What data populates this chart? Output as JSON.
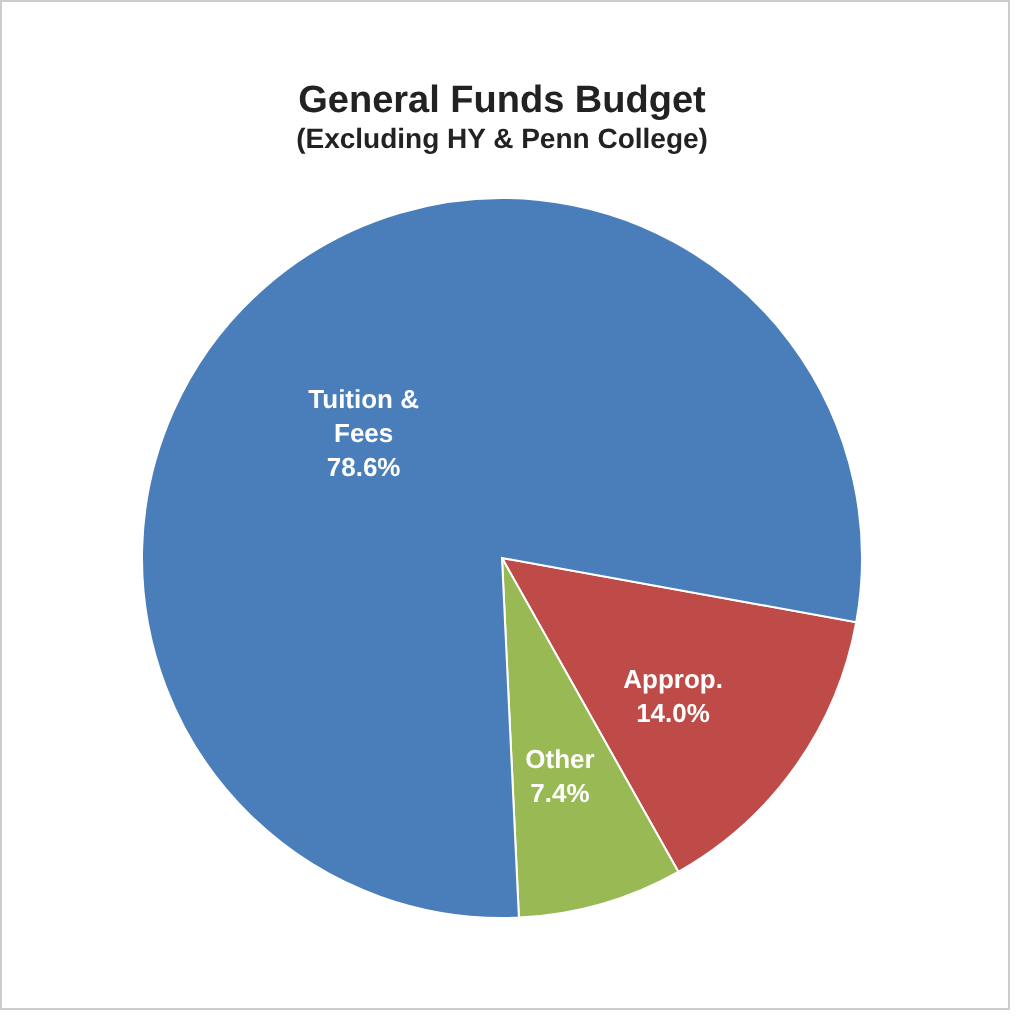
{
  "chart_data": {
    "type": "pie",
    "title": "General Funds Budget",
    "subtitle": "(Excluding HY & Penn College)",
    "categories": [
      "Approp.",
      "Other",
      "Tuition & Fees"
    ],
    "values": [
      14.0,
      7.4,
      78.6
    ],
    "colors": [
      "#be4b48",
      "#98b954",
      "#4a7ebb"
    ],
    "value_labels": [
      "14.0%",
      "7.4%",
      "78.6%"
    ],
    "legend": false
  }
}
